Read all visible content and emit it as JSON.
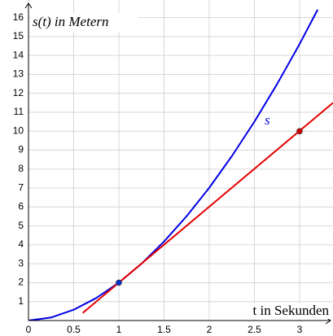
{
  "chart_data": {
    "type": "line",
    "y_label": "s(t) in Metern",
    "x_label": "t in Sekunden",
    "curve_label": "s",
    "xlim": [
      0,
      3.37
    ],
    "ylim": [
      0,
      16.5
    ],
    "xticks": [
      0,
      0.5,
      1,
      1.5,
      2,
      2.5,
      3
    ],
    "yticks": [
      1,
      2,
      3,
      4,
      5,
      6,
      7,
      8,
      9,
      10,
      11,
      12,
      13,
      14,
      15,
      16
    ],
    "grid": true,
    "series": [
      {
        "color": "#0000e6",
        "x": [
          0,
          0.25,
          0.5,
          0.75,
          1,
          1.25,
          1.5,
          1.75,
          2,
          2.25,
          2.5,
          2.75,
          3,
          3.2
        ],
        "values": [
          0,
          0.16,
          0.57,
          1.19,
          2,
          3.0,
          4.17,
          5.51,
          7.01,
          8.68,
          10.5,
          12.48,
          14.6,
          16.42
        ]
      },
      {
        "color": "#e60000",
        "x": [
          0.6,
          3.37
        ],
        "values": [
          0.4,
          11.5
        ]
      }
    ],
    "points": [
      {
        "color": "#0033cc",
        "x": 1,
        "value": 2
      },
      {
        "color": "#cc0000",
        "x": 3,
        "value": 10
      }
    ]
  }
}
